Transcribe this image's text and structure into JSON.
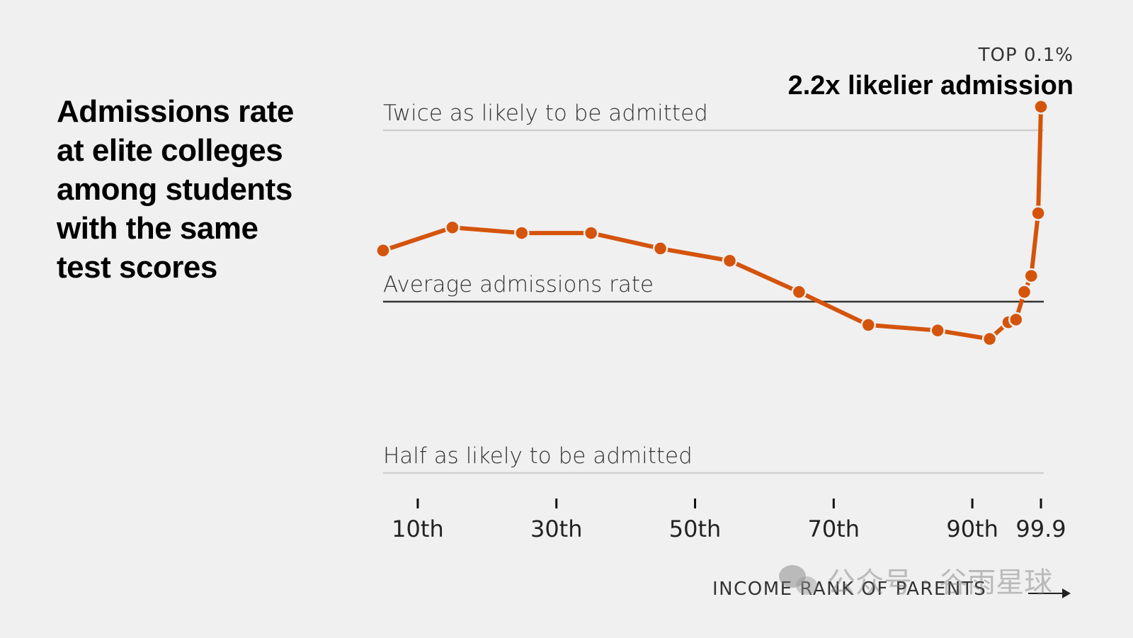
{
  "headline": {
    "lines": [
      "Admissions rate",
      "at elite colleges",
      "among students",
      "with the same",
      "test scores"
    ]
  },
  "callout": {
    "small": "TOP 0.1%",
    "big": "2.2x likelier admission"
  },
  "watermark": {
    "text": "公众号 · 谷雨星球"
  },
  "colors": {
    "background": "#f0f0f0",
    "line": "#d4540b",
    "average_line": "#333333",
    "reference_lines": "#cfcfcf"
  },
  "chart_data": {
    "type": "line",
    "title": "",
    "xlabel": "INCOME RANK OF PARENTS",
    "ylabel": "",
    "y_scale": "log",
    "ylim": [
      0.5,
      2.0
    ],
    "reference_lines": [
      {
        "y": 2.0,
        "label": "Twice as likely to be admitted"
      },
      {
        "y": 1.0,
        "label": "Average admissions rate"
      },
      {
        "y": 0.5,
        "label": "Half as likely to be admitted"
      }
    ],
    "x_ticks": [
      {
        "x": 10,
        "label": "10th"
      },
      {
        "x": 30,
        "label": "30th"
      },
      {
        "x": 50,
        "label": "50th"
      },
      {
        "x": 70,
        "label": "70th"
      },
      {
        "x": 90,
        "label": "90th"
      },
      {
        "x": 99.9,
        "label": "99.9"
      }
    ],
    "series": [
      {
        "points": [
          {
            "x": 5,
            "y": 1.23
          },
          {
            "x": 15,
            "y": 1.35
          },
          {
            "x": 25,
            "y": 1.32
          },
          {
            "x": 35,
            "y": 1.32
          },
          {
            "x": 45,
            "y": 1.24
          },
          {
            "x": 55,
            "y": 1.18
          },
          {
            "x": 65,
            "y": 1.04
          },
          {
            "x": 75,
            "y": 0.91
          },
          {
            "x": 85,
            "y": 0.89
          },
          {
            "x": 92.5,
            "y": 0.86
          },
          {
            "x": 95.2,
            "y": 0.92
          },
          {
            "x": 96.3,
            "y": 0.93
          },
          {
            "x": 97.5,
            "y": 1.04
          },
          {
            "x": 98.5,
            "y": 1.11
          },
          {
            "x": 99.5,
            "y": 1.43
          },
          {
            "x": 99.9,
            "y": 2.2
          }
        ]
      }
    ]
  }
}
